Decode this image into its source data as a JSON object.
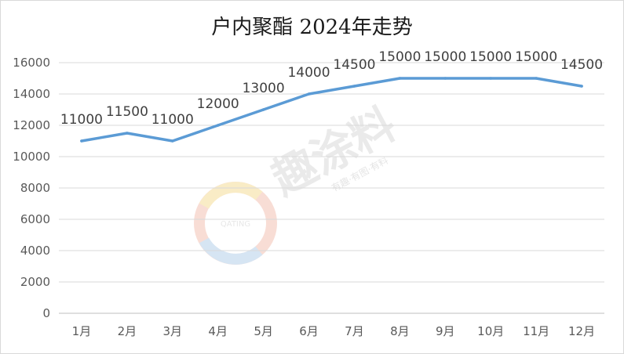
{
  "chart_data": {
    "type": "line",
    "title": "户内聚酯 2024年走势",
    "xlabel": "",
    "ylabel": "",
    "categories": [
      "1月",
      "2月",
      "3月",
      "4月",
      "5月",
      "6月",
      "7月",
      "8月",
      "9月",
      "10月",
      "11月",
      "12月"
    ],
    "series": [
      {
        "values": [
          11000,
          11500,
          11000,
          12000,
          13000,
          14000,
          14500,
          15000,
          15000,
          15000,
          15000,
          14500
        ]
      }
    ],
    "ylim": [
      0,
      16000
    ],
    "yticks": [
      0,
      2000,
      4000,
      6000,
      8000,
      10000,
      12000,
      14000,
      16000
    ],
    "grid": "horizontal",
    "legend": "none",
    "data_labels": true,
    "line_color": "#5b9bd5"
  },
  "watermark": {
    "brand": "趣涂料",
    "tagline": "有趣·有图·有料",
    "logo_text": "QATING"
  }
}
